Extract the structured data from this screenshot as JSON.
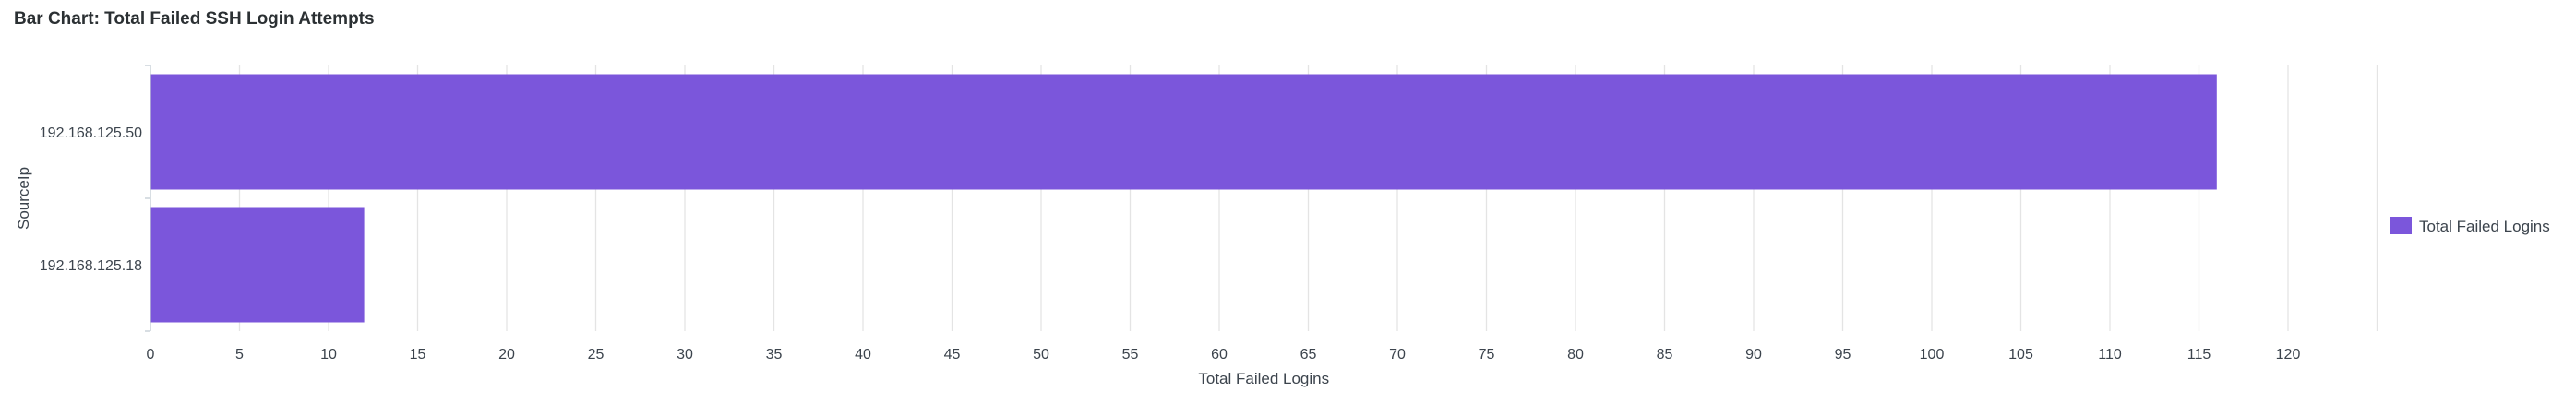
{
  "panel": {
    "title": "Bar Chart: Total Failed SSH Login Attempts"
  },
  "colors": {
    "bar": "#7b56db",
    "grid": "#e4e4e4",
    "axis": "#c3cbd4",
    "text": "#3c444d"
  },
  "chart_data": {
    "type": "bar",
    "orientation": "horizontal",
    "title": "Bar Chart: Total Failed SSH Login Attempts",
    "categories": [
      "192.168.125.50",
      "192.168.125.18"
    ],
    "series": [
      {
        "name": "Total Failed Logins",
        "values": [
          116,
          12
        ]
      }
    ],
    "xlabel": "Total Failed Logins",
    "ylabel": "SourceIp",
    "xlim": [
      0,
      125
    ],
    "x_ticks": [
      0,
      5,
      10,
      15,
      20,
      25,
      30,
      35,
      40,
      45,
      50,
      55,
      60,
      65,
      70,
      75,
      80,
      85,
      90,
      95,
      100,
      105,
      110,
      115,
      120
    ],
    "grid": true,
    "legend": "right"
  }
}
